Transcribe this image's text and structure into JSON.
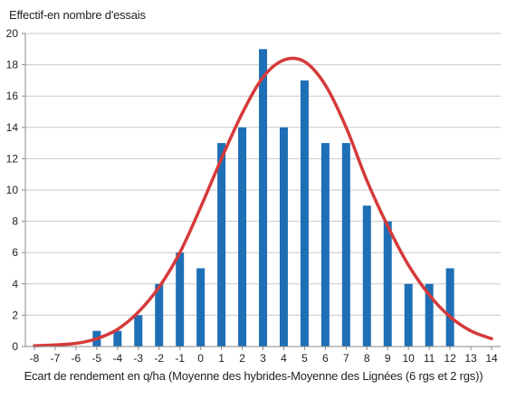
{
  "chart_data": {
    "type": "bar",
    "ylabel": "Effectif-en nombre d'essais",
    "xlabel": "Ecart de rendement en q/ha (Moyenne des hybrides-Moyenne des Lignées (6 rgs et 2 rgs))",
    "x_ticks": [
      "-8",
      "-7",
      "-6",
      "-5",
      "-4",
      "-3",
      "-2",
      "-1",
      "0",
      "1",
      "2",
      "3",
      "4",
      "5",
      "6",
      "7",
      "8",
      "9",
      "10",
      "11",
      "12",
      "13",
      "14"
    ],
    "y_ticks": [
      "0",
      "2",
      "4",
      "6",
      "8",
      "10",
      "12",
      "14",
      "16",
      "18",
      "20"
    ],
    "xlim": [
      -8,
      14
    ],
    "ylim": [
      0,
      20
    ],
    "grid": true,
    "bar_color": "#1e6fb5",
    "curve_color": "#d63a3a",
    "series": [
      {
        "type": "bar",
        "x": [
          -5,
          -4,
          -3,
          -2,
          -1,
          0,
          1,
          2,
          3,
          4,
          5,
          6,
          7,
          8,
          9,
          10,
          11,
          12
        ],
        "values": [
          1,
          1,
          2,
          4,
          6,
          5,
          13,
          14,
          19,
          14,
          17,
          13,
          13,
          9,
          8,
          4,
          4,
          5
        ]
      },
      {
        "type": "line",
        "x": [
          -8,
          -7,
          -6,
          -5,
          -4,
          -3,
          -2,
          -1,
          0,
          1,
          2,
          3,
          4,
          5,
          6,
          7,
          8,
          9,
          10,
          11,
          12,
          13,
          14
        ],
        "values": [
          0.05,
          0.1,
          0.2,
          0.5,
          1.1,
          2.2,
          3.8,
          6.0,
          8.9,
          12.0,
          14.9,
          17.2,
          18.3,
          18.2,
          16.7,
          14.0,
          10.6,
          7.7,
          5.2,
          3.3,
          1.9,
          1.0,
          0.5
        ]
      }
    ]
  }
}
